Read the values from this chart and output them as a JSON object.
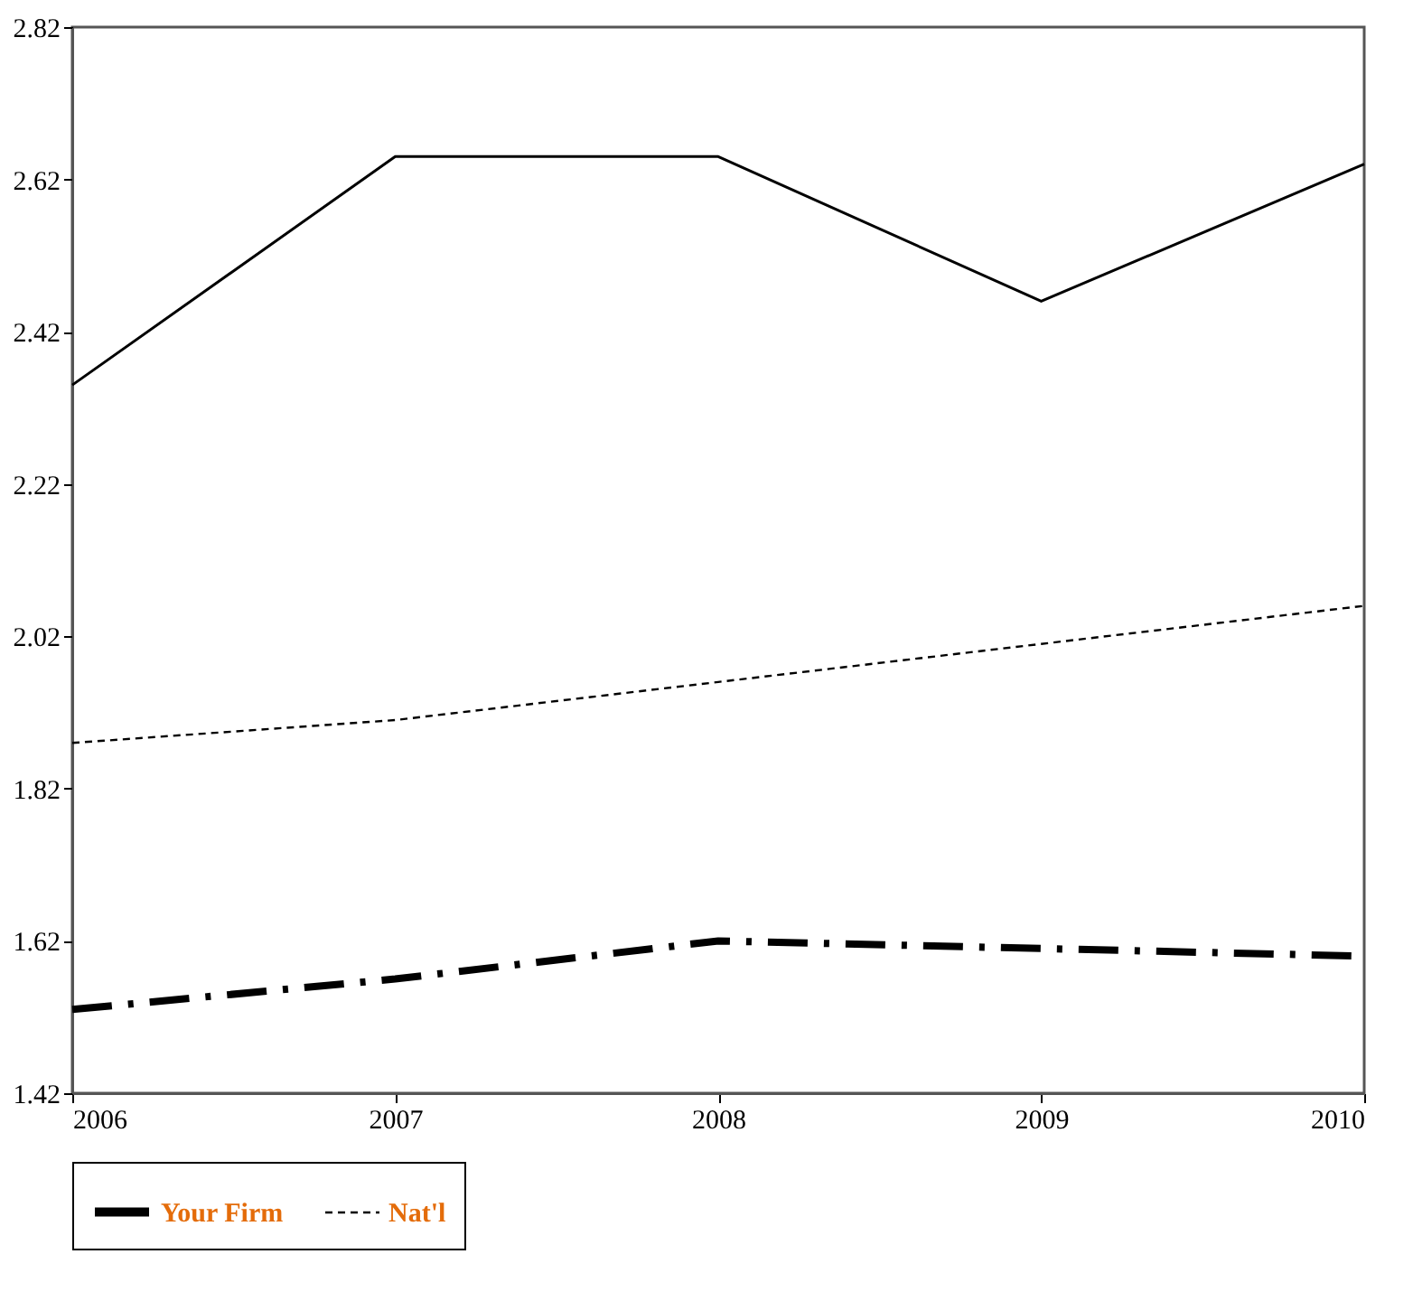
{
  "chart_data": {
    "type": "line",
    "x": [
      2006,
      2007,
      2008,
      2009,
      2010
    ],
    "xlim": [
      2006,
      2010
    ],
    "xticks": [
      2006,
      2007,
      2008,
      2009,
      2010
    ],
    "ylim": [
      1.42,
      2.82
    ],
    "yticks": [
      1.42,
      1.62,
      1.82,
      2.02,
      2.22,
      2.42,
      2.62,
      2.82
    ],
    "grid": false,
    "legend": "bottom",
    "series": [
      {
        "name": "Your Firm",
        "color": "#000000",
        "line_style": "solid",
        "values": [
          null,
          null,
          null,
          null,
          null
        ]
      },
      {
        "name": "Nat'l",
        "color": "#000000",
        "line_style": "dotted",
        "values": [
          1.88,
          1.91,
          1.96,
          2.01,
          2.06
        ]
      },
      {
        "color": "#000000",
        "line_style": "solid",
        "values": [
          2.35,
          2.65,
          2.65,
          2.46,
          2.64
        ]
      },
      {
        "color": "#000000",
        "line_style": "dashed",
        "values": [
          1.53,
          1.57,
          1.62,
          1.61,
          1.6
        ]
      }
    ]
  }
}
